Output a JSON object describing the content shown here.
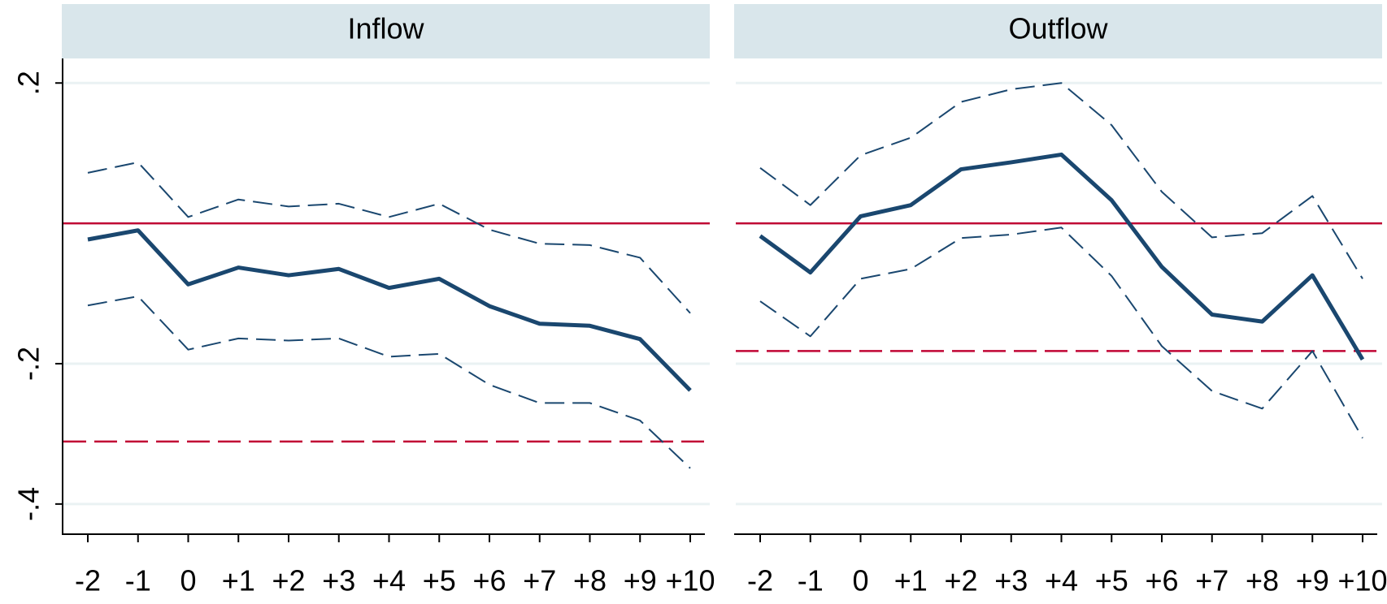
{
  "chart_data": [
    {
      "type": "line",
      "title": "Inflow",
      "categories": [
        "-2",
        "-1",
        "0",
        "+1",
        "+2",
        "+3",
        "+4",
        "+5",
        "+6",
        "+7",
        "+8",
        "+9",
        "+10"
      ],
      "ylim": [
        -0.443,
        0.235
      ],
      "yticks": [
        {
          "value": 0.2,
          "label": ".2"
        },
        0,
        {
          "value": -0.2,
          "label": "-.2"
        },
        {
          "value": -0.4,
          "label": "-.4"
        }
      ],
      "grid": true,
      "series": [
        {
          "color": "#1a476f",
          "style": "solid",
          "values": [
            -0.023,
            -0.01,
            -0.087,
            -0.063,
            -0.074,
            -0.065,
            -0.092,
            -0.079,
            -0.118,
            -0.143,
            -0.146,
            -0.165,
            -0.238
          ]
        },
        {
          "color": "#1a476f",
          "style": "dashed",
          "values": [
            0.072,
            0.087,
            0.009,
            0.034,
            0.024,
            0.028,
            0.009,
            0.028,
            -0.009,
            -0.029,
            -0.031,
            -0.049,
            -0.128
          ]
        },
        {
          "color": "#1a476f",
          "style": "dashed",
          "values": [
            -0.117,
            -0.104,
            -0.18,
            -0.164,
            -0.167,
            -0.164,
            -0.19,
            -0.186,
            -0.23,
            -0.256,
            -0.256,
            -0.281,
            -0.349
          ]
        }
      ],
      "hlines": [
        {
          "value": 0,
          "color": "#c10534",
          "style": "solid"
        },
        {
          "value": -0.311,
          "color": "#c10534",
          "style": "dashed"
        }
      ]
    },
    {
      "type": "line",
      "title": "Outflow",
      "categories": [
        "-2",
        "-1",
        "0",
        "+1",
        "+2",
        "+3",
        "+4",
        "+5",
        "+6",
        "+7",
        "+8",
        "+9",
        "+10"
      ],
      "ylim": [
        -0.443,
        0.235
      ],
      "yticks": [
        0.2,
        0,
        -0.2,
        -0.4
      ],
      "grid": true,
      "series": [
        {
          "color": "#1a476f",
          "style": "solid",
          "values": [
            -0.018,
            -0.07,
            0.01,
            0.026,
            0.077,
            0.087,
            0.098,
            0.033,
            -0.062,
            -0.13,
            -0.14,
            -0.074,
            -0.194
          ]
        },
        {
          "color": "#1a476f",
          "style": "dashed",
          "values": [
            0.079,
            0.026,
            0.097,
            0.122,
            0.173,
            0.191,
            0.2,
            0.14,
            0.045,
            -0.02,
            -0.014,
            0.039,
            -0.079
          ]
        },
        {
          "color": "#1a476f",
          "style": "dashed",
          "values": [
            -0.111,
            -0.161,
            -0.079,
            -0.065,
            -0.021,
            -0.016,
            -0.006,
            -0.075,
            -0.175,
            -0.239,
            -0.264,
            -0.182,
            -0.306
          ]
        }
      ],
      "hlines": [
        {
          "value": 0,
          "color": "#c10534",
          "style": "solid"
        },
        {
          "value": -0.182,
          "color": "#c10534",
          "style": "dashed"
        }
      ]
    }
  ]
}
